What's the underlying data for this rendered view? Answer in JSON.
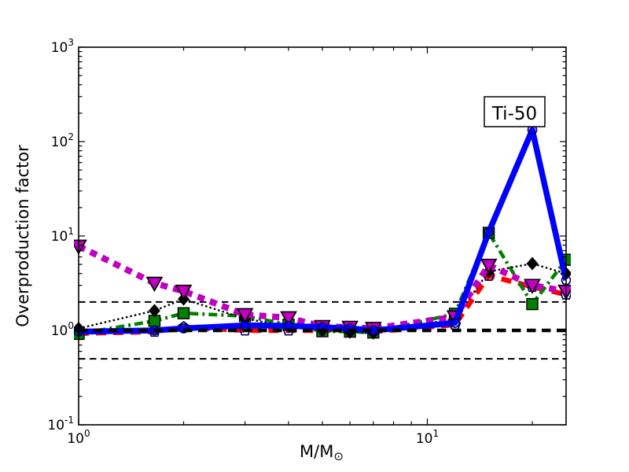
{
  "figure": {
    "background": "#ffffff"
  },
  "chart_data": {
    "type": "line",
    "annotation": "Ti-50",
    "ylabel": "Overproduction factor",
    "xlabel_main": "M/M",
    "xlabel_sub": "⊙",
    "xscale": "log",
    "yscale": "log",
    "xlim": [
      1,
      25
    ],
    "ylim": [
      0.1,
      1000
    ],
    "grid": false,
    "legend_position": "none",
    "x_major_ticks": [
      {
        "value": 1,
        "base": "10",
        "exp": "0"
      },
      {
        "value": 10,
        "base": "10",
        "exp": "1"
      }
    ],
    "x_minor_ticks": [
      2,
      3,
      4,
      5,
      6,
      7,
      8,
      9,
      20
    ],
    "y_major_ticks": [
      {
        "value": 1000,
        "base": "10",
        "exp": "3"
      },
      {
        "value": 100,
        "base": "10",
        "exp": "2"
      },
      {
        "value": 10,
        "base": "10",
        "exp": "1"
      },
      {
        "value": 1,
        "base": "10",
        "exp": "0"
      },
      {
        "value": 0.1,
        "base": "10",
        "exp": "-1"
      }
    ],
    "y_minor_decades": [
      0.1,
      1,
      10,
      100
    ],
    "reference_lines": [
      {
        "y": 2,
        "style": "thin-dashed",
        "color": "#000000"
      },
      {
        "y": 1,
        "style": "thick-dashed",
        "color": "#000000"
      },
      {
        "y": 0.5,
        "style": "thin-dashed",
        "color": "#000000"
      }
    ],
    "x_values_mass": [
      1,
      1.65,
      2,
      3,
      4,
      5,
      6,
      7,
      12,
      15,
      20,
      25
    ],
    "series": [
      {
        "name": "red-dashed-pentagon",
        "color": "#ff0000",
        "linestyle": "dashed",
        "marker": "pentagon",
        "values": [
          0.93,
          0.97,
          1.08,
          1.0,
          1.0,
          1.0,
          1.02,
          0.97,
          1.15,
          3.8,
          2.9,
          2.4
        ]
      },
      {
        "name": "green-dashdot-square",
        "color": "#007f00",
        "linestyle": "dashdot",
        "marker": "square",
        "values": [
          0.92,
          1.26,
          1.52,
          1.42,
          1.15,
          0.98,
          0.97,
          0.95,
          1.5,
          10.8,
          1.9,
          5.6
        ]
      },
      {
        "name": "black-dotted-diamond",
        "color": "#000000",
        "linestyle": "dotted",
        "marker": "diamond",
        "values": [
          1.05,
          1.62,
          2.15,
          1.33,
          1.1,
          1.0,
          0.96,
          0.94,
          1.33,
          4.2,
          5.1,
          4.0
        ]
      },
      {
        "name": "magenta-dashed-triangle",
        "color": "#bf00bf",
        "linestyle": "dashed-thick",
        "marker": "triangle-down",
        "values": [
          7.8,
          3.16,
          2.6,
          1.47,
          1.36,
          1.1,
          1.08,
          1.05,
          1.39,
          4.9,
          3.0,
          2.6
        ]
      },
      {
        "name": "blue-solid-circle",
        "color": "#0000ff",
        "linestyle": "solid",
        "marker": "circle",
        "values": [
          0.97,
          1.0,
          1.05,
          1.13,
          1.12,
          1.08,
          1.05,
          1.0,
          1.2,
          11,
          133,
          3.4
        ]
      }
    ]
  }
}
